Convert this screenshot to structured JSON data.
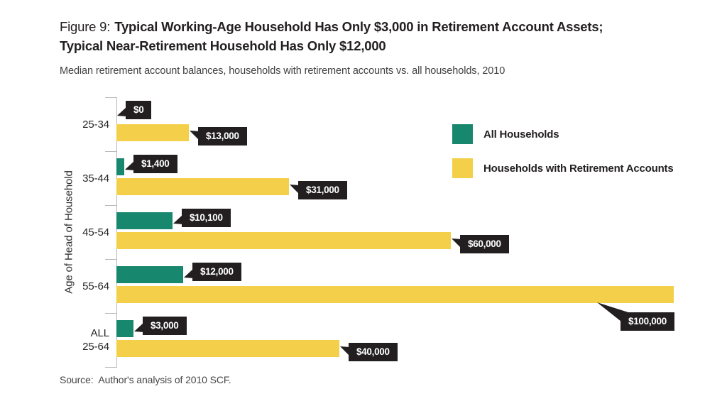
{
  "figure": {
    "label": "Figure 9:",
    "title_line1": "Typical Working-Age Household Has Only $3,000 in Retirement Account Assets;",
    "title_line2": "Typical Near-Retirement Household Has Only $12,000",
    "subtitle": "Median retirement account balances, households with retirement accounts vs. all households, 2010",
    "source": "Source:  Author's analysis of 2010 SCF."
  },
  "chart_data": {
    "type": "bar",
    "orientation": "horizontal",
    "title": "Figure 9: Typical Working-Age Household Has Only $3,000 in Retirement Account Assets; Typical Near-Retirement Household Has Only $12,000",
    "subtitle": "Median retirement account balances, households with retirement accounts vs. all households, 2010",
    "ylabel": "Age of Head of Household",
    "xlabel": "",
    "xlim": [
      0,
      100000
    ],
    "grid": false,
    "legend_position": "top-right",
    "categories": [
      "25-34",
      "35-44",
      "45-54",
      "55-64",
      "ALL\n25-64"
    ],
    "series": [
      {
        "name": "All Households",
        "color": "#17876E",
        "values": [
          0,
          1400,
          10100,
          12000,
          3000
        ],
        "labels": [
          "$0",
          "$1,400",
          "$10,100",
          "$12,000",
          "$3,000"
        ],
        "label_positions": [
          "right",
          "right",
          "right",
          "right",
          "right"
        ]
      },
      {
        "name": "Households with Retirement Accounts",
        "color": "#F4D04A",
        "values": [
          13000,
          31000,
          60000,
          100000,
          40000
        ],
        "labels": [
          "$13,000",
          "$31,000",
          "$60,000",
          "$100,000",
          "$40,000"
        ],
        "label_positions": [
          "right",
          "right",
          "right",
          "below",
          "right"
        ]
      }
    ],
    "data_label_style": {
      "bg": "#231F20",
      "text_color": "#FFFFFF"
    },
    "source": "Source:  Author's analysis of 2010 SCF."
  },
  "colors": {
    "background": "#FFFFFF",
    "title_text": "#231F20",
    "axis": "#B9B9B9",
    "green": "#17876E",
    "yellow": "#F4D04A",
    "callout_bg": "#231F20",
    "callout_text": "#FFFFFF"
  }
}
